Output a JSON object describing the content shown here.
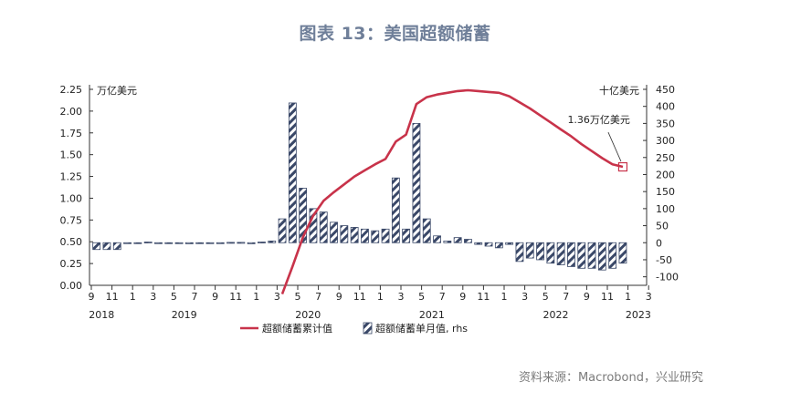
{
  "title": "图表 13：美国超额储蓄",
  "source": "资料来源：Macrobond，兴业研究",
  "colors": {
    "line": "#c8334a",
    "bar_stroke": "#3a4868",
    "bar_hatch": "#3a4868",
    "title": "#6f7f99",
    "annotation_box": "#c8334a"
  },
  "chart_data": {
    "type": "bar+line",
    "left_axis": {
      "unit_label": "万亿美元",
      "ylim": [
        0,
        2.25
      ],
      "ticks": [
        "0.00",
        "0.25",
        "0.50",
        "0.75",
        "1.00",
        "1.25",
        "1.50",
        "1.75",
        "2.00",
        "2.25"
      ]
    },
    "right_axis": {
      "unit_label": "十亿美元",
      "ylim": [
        -125,
        450
      ],
      "ticks": [
        "-100",
        "-50",
        "0",
        "50",
        "100",
        "150",
        "200",
        "250",
        "300",
        "350",
        "400",
        "450"
      ]
    },
    "x_tick_labels": [
      "9",
      "11",
      "1",
      "3",
      "5",
      "7",
      "9",
      "11",
      "1",
      "3",
      "5",
      "7",
      "9",
      "11",
      "1",
      "3",
      "5",
      "7",
      "9",
      "11",
      "1",
      "3",
      "5",
      "7",
      "9",
      "11",
      "1",
      "3"
    ],
    "year_labels": [
      {
        "label": "2018",
        "tick": 0
      },
      {
        "label": "2019",
        "tick": 4
      },
      {
        "label": "2020",
        "tick": 10
      },
      {
        "label": "2021",
        "tick": 16
      },
      {
        "label": "2022",
        "tick": 22
      },
      {
        "label": "2023",
        "tick": 26
      }
    ],
    "months": [
      "2018-09",
      "2018-10",
      "2018-11",
      "2018-12",
      "2019-01",
      "2019-02",
      "2019-03",
      "2019-04",
      "2019-05",
      "2019-06",
      "2019-07",
      "2019-08",
      "2019-09",
      "2019-10",
      "2019-11",
      "2019-12",
      "2020-01",
      "2020-02",
      "2020-03",
      "2020-04",
      "2020-05",
      "2020-06",
      "2020-07",
      "2020-08",
      "2020-09",
      "2020-10",
      "2020-11",
      "2020-12",
      "2021-01",
      "2021-02",
      "2021-03",
      "2021-04",
      "2021-05",
      "2021-06",
      "2021-07",
      "2021-08",
      "2021-09",
      "2021-10",
      "2021-11",
      "2021-12",
      "2022-01",
      "2022-02",
      "2022-03",
      "2022-04",
      "2022-05",
      "2022-06",
      "2022-07",
      "2022-08",
      "2022-09",
      "2022-10",
      "2022-11",
      "2022-12"
    ],
    "series": [
      {
        "name": "超额储蓄单月值, rhs",
        "type": "bar",
        "axis": "right",
        "values": [
          -20,
          -20,
          -20,
          0,
          0,
          2,
          0,
          -2,
          -2,
          -3,
          -2,
          -1,
          0,
          1,
          1,
          -3,
          2,
          5,
          70,
          410,
          160,
          100,
          90,
          60,
          50,
          45,
          40,
          35,
          40,
          190,
          40,
          350,
          70,
          20,
          5,
          15,
          10,
          -5,
          -10,
          -15,
          -5,
          -55,
          -45,
          -50,
          -60,
          -65,
          -70,
          -75,
          -75,
          -80,
          -75,
          -60
        ]
      },
      {
        "name": "超额储蓄累计值",
        "type": "line",
        "axis": "left",
        "points": [
          {
            "x": "2020-03",
            "y": -0.1
          },
          {
            "x": "2020-04",
            "y": 0.22
          },
          {
            "x": "2020-05",
            "y": 0.55
          },
          {
            "x": "2020-06",
            "y": 0.8
          },
          {
            "x": "2020-07",
            "y": 0.97
          },
          {
            "x": "2020-08",
            "y": 1.07
          },
          {
            "x": "2020-09",
            "y": 1.16
          },
          {
            "x": "2020-10",
            "y": 1.25
          },
          {
            "x": "2020-11",
            "y": 1.32
          },
          {
            "x": "2020-12",
            "y": 1.39
          },
          {
            "x": "2021-01",
            "y": 1.45
          },
          {
            "x": "2021-02",
            "y": 1.65
          },
          {
            "x": "2021-03",
            "y": 1.73
          },
          {
            "x": "2021-04",
            "y": 2.08
          },
          {
            "x": "2021-05",
            "y": 2.16
          },
          {
            "x": "2021-06",
            "y": 2.19
          },
          {
            "x": "2021-07",
            "y": 2.21
          },
          {
            "x": "2021-08",
            "y": 2.23
          },
          {
            "x": "2021-09",
            "y": 2.24
          },
          {
            "x": "2021-10",
            "y": 2.23
          },
          {
            "x": "2021-11",
            "y": 2.22
          },
          {
            "x": "2021-12",
            "y": 2.21
          },
          {
            "x": "2022-01",
            "y": 2.17
          },
          {
            "x": "2022-02",
            "y": 2.1
          },
          {
            "x": "2022-03",
            "y": 2.03
          },
          {
            "x": "2022-04",
            "y": 1.95
          },
          {
            "x": "2022-05",
            "y": 1.87
          },
          {
            "x": "2022-06",
            "y": 1.79
          },
          {
            "x": "2022-07",
            "y": 1.71
          },
          {
            "x": "2022-08",
            "y": 1.62
          },
          {
            "x": "2022-09",
            "y": 1.54
          },
          {
            "x": "2022-10",
            "y": 1.46
          },
          {
            "x": "2022-11",
            "y": 1.39
          },
          {
            "x": "2022-12",
            "y": 1.36
          }
        ]
      }
    ],
    "annotation": {
      "text": "1.36万亿美元",
      "x": "2022-12",
      "y": 1.36
    },
    "legend": {
      "position": "bottom",
      "items": [
        "超额储蓄累计值",
        "超额储蓄单月值, rhs"
      ]
    },
    "grid": false
  }
}
